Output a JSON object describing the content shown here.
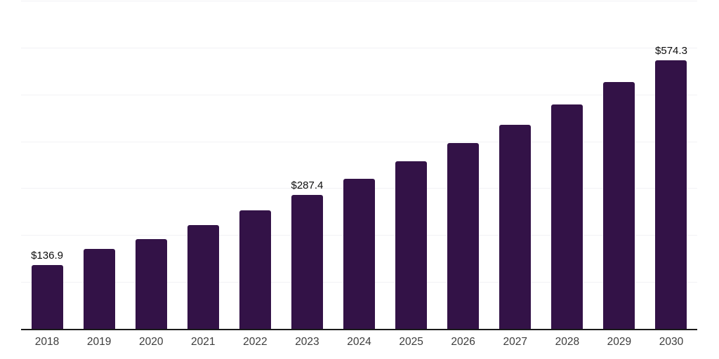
{
  "chart_data": {
    "type": "bar",
    "title": "",
    "xlabel": "",
    "ylabel": "",
    "categories": [
      "2018",
      "2019",
      "2020",
      "2021",
      "2022",
      "2023",
      "2024",
      "2025",
      "2026",
      "2027",
      "2028",
      "2029",
      "2030"
    ],
    "values": [
      136.9,
      172.6,
      192.4,
      223.5,
      254.5,
      287.4,
      321.0,
      358.8,
      397.3,
      437.2,
      480.4,
      527.9,
      574.3
    ],
    "value_labels": {
      "2018": "$136.9",
      "2023": "$287.4",
      "2030": "$574.3"
    },
    "ylim": [
      0,
      700
    ],
    "grid_interval": 100,
    "grid_visible": true,
    "legend": "none",
    "colors": {
      "bar": "#331247",
      "grid": "#f2f2f5",
      "axis": "#1a1a1a",
      "tick_label": "#3d3d3d",
      "value_label": "#0d0d0d",
      "background": "#ffffff"
    }
  }
}
